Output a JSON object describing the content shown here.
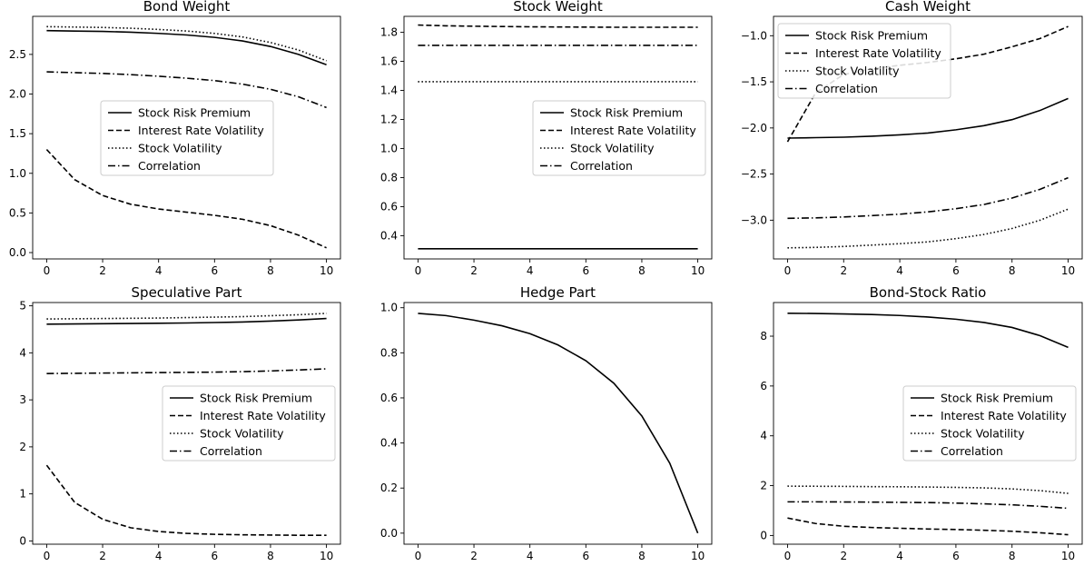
{
  "chart_data": [
    {
      "type": "line",
      "title": "Bond Weight",
      "xlabel": "",
      "ylabel": "",
      "xlim": [
        -0.5,
        10.5
      ],
      "ylim": [
        -0.08,
        2.98
      ],
      "xticks": [
        0,
        2,
        4,
        6,
        8,
        10
      ],
      "yticks": [
        0.0,
        0.5,
        1.0,
        1.5,
        2.0,
        2.5
      ],
      "ytick_labels": [
        "0.0",
        "0.5",
        "1.0",
        "1.5",
        "2.0",
        "2.5"
      ],
      "legend": {
        "position": "center"
      },
      "x": [
        0,
        1,
        2,
        3,
        4,
        5,
        6,
        7,
        8,
        9,
        10
      ],
      "series": [
        {
          "name": "Stock Risk Premium",
          "style": "solid",
          "values": [
            2.8,
            2.795,
            2.79,
            2.78,
            2.765,
            2.745,
            2.715,
            2.67,
            2.6,
            2.5,
            2.37
          ]
        },
        {
          "name": "Interest Rate Volatility",
          "style": "dashed",
          "values": [
            1.3,
            0.92,
            0.72,
            0.61,
            0.55,
            0.51,
            0.47,
            0.42,
            0.34,
            0.22,
            0.06
          ]
        },
        {
          "name": "Stock Volatility",
          "style": "dotted",
          "values": [
            2.85,
            2.845,
            2.84,
            2.83,
            2.815,
            2.795,
            2.765,
            2.72,
            2.65,
            2.555,
            2.42
          ]
        },
        {
          "name": "Correlation",
          "style": "dashdot",
          "values": [
            2.28,
            2.27,
            2.26,
            2.245,
            2.225,
            2.2,
            2.17,
            2.125,
            2.06,
            1.965,
            1.83
          ]
        }
      ]
    },
    {
      "type": "line",
      "title": "Stock Weight",
      "xlabel": "",
      "ylabel": "",
      "xlim": [
        -0.5,
        10.5
      ],
      "ylim": [
        0.24,
        1.91
      ],
      "xticks": [
        0,
        2,
        4,
        6,
        8,
        10
      ],
      "yticks": [
        0.4,
        0.6,
        0.8,
        1.0,
        1.2,
        1.4,
        1.6,
        1.8
      ],
      "ytick_labels": [
        "0.4",
        "0.6",
        "0.8",
        "1.0",
        "1.2",
        "1.4",
        "1.6",
        "1.8"
      ],
      "legend": {
        "position": "center-right"
      },
      "x": [
        0,
        1,
        2,
        3,
        4,
        5,
        6,
        7,
        8,
        9,
        10
      ],
      "series": [
        {
          "name": "Stock Risk Premium",
          "style": "solid",
          "values": [
            0.31,
            0.31,
            0.31,
            0.31,
            0.31,
            0.31,
            0.31,
            0.31,
            0.31,
            0.31,
            0.31
          ]
        },
        {
          "name": "Interest Rate Volatility",
          "style": "dashed",
          "values": [
            1.85,
            1.845,
            1.842,
            1.84,
            1.838,
            1.837,
            1.836,
            1.835,
            1.835,
            1.835,
            1.835
          ]
        },
        {
          "name": "Stock Volatility",
          "style": "dotted",
          "values": [
            1.46,
            1.46,
            1.46,
            1.46,
            1.46,
            1.46,
            1.46,
            1.46,
            1.46,
            1.46,
            1.46
          ]
        },
        {
          "name": "Correlation",
          "style": "dashdot",
          "values": [
            1.71,
            1.71,
            1.71,
            1.71,
            1.71,
            1.71,
            1.71,
            1.71,
            1.71,
            1.71,
            1.71
          ]
        }
      ]
    },
    {
      "type": "line",
      "title": "Cash Weight",
      "xlabel": "",
      "ylabel": "",
      "xlim": [
        -0.5,
        10.5
      ],
      "ylim": [
        -3.42,
        -0.79
      ],
      "xticks": [
        0,
        2,
        4,
        6,
        8,
        10
      ],
      "yticks": [
        -3.0,
        -2.5,
        -2.0,
        -1.5,
        -1.0
      ],
      "ytick_labels": [
        "−3.0",
        "−2.5",
        "−2.0",
        "−1.5",
        "−1.0"
      ],
      "legend": {
        "position": "top-left"
      },
      "x": [
        0,
        1,
        2,
        3,
        4,
        5,
        6,
        7,
        8,
        9,
        10
      ],
      "series": [
        {
          "name": "Stock Risk Premium",
          "style": "solid",
          "values": [
            -2.11,
            -2.105,
            -2.1,
            -2.09,
            -2.075,
            -2.055,
            -2.02,
            -1.975,
            -1.91,
            -1.81,
            -1.68
          ]
        },
        {
          "name": "Interest Rate Volatility",
          "style": "dashed",
          "values": [
            -2.15,
            -1.62,
            -1.42,
            -1.36,
            -1.32,
            -1.29,
            -1.25,
            -1.2,
            -1.12,
            -1.03,
            -0.9
          ]
        },
        {
          "name": "Stock Volatility",
          "style": "dotted",
          "values": [
            -3.3,
            -3.295,
            -3.285,
            -3.27,
            -3.255,
            -3.235,
            -3.2,
            -3.155,
            -3.09,
            -3.0,
            -2.88
          ]
        },
        {
          "name": "Correlation",
          "style": "dashdot",
          "values": [
            -2.98,
            -2.975,
            -2.965,
            -2.95,
            -2.935,
            -2.91,
            -2.875,
            -2.83,
            -2.76,
            -2.665,
            -2.54
          ]
        }
      ]
    },
    {
      "type": "line",
      "title": "Speculative Part",
      "xlabel": "",
      "ylabel": "",
      "xlim": [
        -0.5,
        10.5
      ],
      "ylim": [
        -0.07,
        5.07
      ],
      "xticks": [
        0,
        2,
        4,
        6,
        8,
        10
      ],
      "yticks": [
        0,
        1,
        2,
        3,
        4,
        5
      ],
      "ytick_labels": [
        "0",
        "1",
        "2",
        "3",
        "4",
        "5"
      ],
      "legend": {
        "position": "center-right"
      },
      "x": [
        0,
        1,
        2,
        3,
        4,
        5,
        6,
        7,
        8,
        9,
        10
      ],
      "series": [
        {
          "name": "Stock Risk Premium",
          "style": "solid",
          "values": [
            4.61,
            4.615,
            4.62,
            4.625,
            4.63,
            4.635,
            4.645,
            4.655,
            4.675,
            4.7,
            4.73
          ]
        },
        {
          "name": "Interest Rate Volatility",
          "style": "dashed",
          "values": [
            1.61,
            0.82,
            0.46,
            0.28,
            0.2,
            0.16,
            0.14,
            0.13,
            0.125,
            0.12,
            0.12
          ]
        },
        {
          "name": "Stock Volatility",
          "style": "dotted",
          "values": [
            4.72,
            4.725,
            4.73,
            4.735,
            4.74,
            4.75,
            4.76,
            4.77,
            4.79,
            4.81,
            4.84
          ]
        },
        {
          "name": "Correlation",
          "style": "dashdot",
          "values": [
            3.56,
            3.565,
            3.57,
            3.575,
            3.58,
            3.585,
            3.59,
            3.6,
            3.615,
            3.635,
            3.66
          ]
        }
      ]
    },
    {
      "type": "line",
      "title": "Hedge Part",
      "xlabel": "",
      "ylabel": "",
      "xlim": [
        -0.5,
        10.5
      ],
      "ylim": [
        -0.049,
        1.023
      ],
      "xticks": [
        0,
        2,
        4,
        6,
        8,
        10
      ],
      "yticks": [
        0.0,
        0.2,
        0.4,
        0.6,
        0.8,
        1.0
      ],
      "ytick_labels": [
        "0.0",
        "0.2",
        "0.4",
        "0.6",
        "0.8",
        "1.0"
      ],
      "legend": null,
      "x": [
        0,
        1,
        2,
        3,
        4,
        5,
        6,
        7,
        8,
        9,
        10
      ],
      "series": [
        {
          "style": "solid",
          "values": [
            0.975,
            0.965,
            0.945,
            0.92,
            0.885,
            0.835,
            0.765,
            0.665,
            0.52,
            0.31,
            0.0
          ]
        }
      ]
    },
    {
      "type": "line",
      "title": "Bond-Stock Ratio",
      "xlabel": "",
      "ylabel": "",
      "xlim": [
        -0.5,
        10.5
      ],
      "ylim": [
        -0.35,
        9.35
      ],
      "xticks": [
        0,
        2,
        4,
        6,
        8,
        10
      ],
      "yticks": [
        0,
        2,
        4,
        6,
        8
      ],
      "ytick_labels": [
        "0",
        "2",
        "4",
        "6",
        "8"
      ],
      "legend": {
        "position": "center-right"
      },
      "x": [
        0,
        1,
        2,
        3,
        4,
        5,
        6,
        7,
        8,
        9,
        10
      ],
      "series": [
        {
          "name": "Stock Risk Premium",
          "style": "solid",
          "values": [
            8.92,
            8.91,
            8.89,
            8.87,
            8.83,
            8.77,
            8.68,
            8.55,
            8.35,
            8.02,
            7.55
          ]
        },
        {
          "name": "Interest Rate Volatility",
          "style": "dashed",
          "values": [
            0.7,
            0.48,
            0.37,
            0.32,
            0.29,
            0.26,
            0.24,
            0.21,
            0.17,
            0.11,
            0.03
          ]
        },
        {
          "name": "Stock Volatility",
          "style": "dotted",
          "values": [
            1.98,
            1.975,
            1.97,
            1.96,
            1.955,
            1.945,
            1.93,
            1.91,
            1.87,
            1.8,
            1.69
          ]
        },
        {
          "name": "Correlation",
          "style": "dashdot",
          "values": [
            1.35,
            1.35,
            1.345,
            1.34,
            1.33,
            1.32,
            1.3,
            1.27,
            1.23,
            1.17,
            1.09
          ]
        }
      ]
    }
  ]
}
